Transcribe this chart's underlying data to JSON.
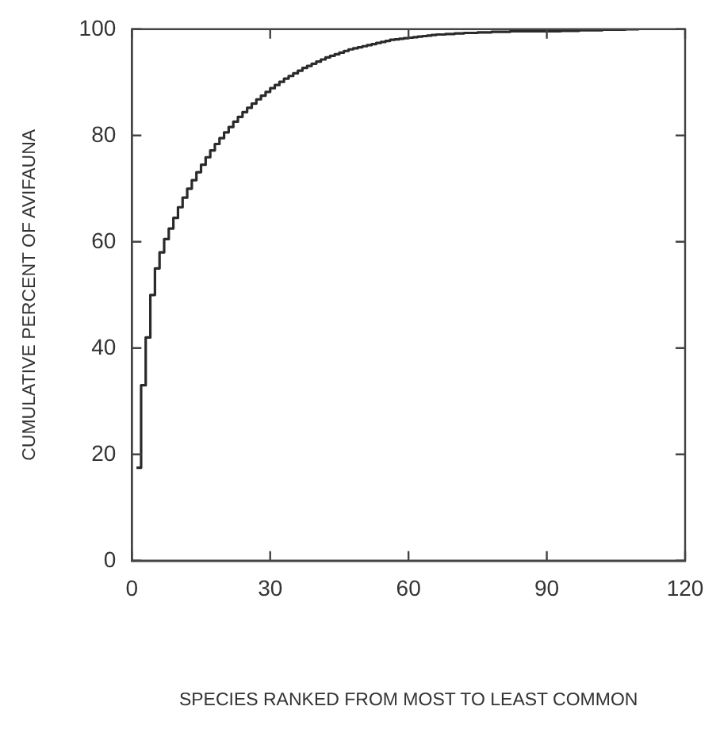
{
  "chart_data": {
    "type": "step",
    "xlabel": "SPECIES RANKED FROM MOST TO LEAST COMMON",
    "ylabel": "CUMULATIVE PERCENT OF AVIFAUNA",
    "x": [
      1,
      2,
      3,
      4,
      5,
      6,
      7,
      8,
      9,
      10,
      11,
      12,
      13,
      14,
      15,
      16,
      17,
      18,
      19,
      20,
      21,
      22,
      23,
      24,
      25,
      26,
      27,
      28,
      29,
      30,
      31,
      32,
      33,
      34,
      35,
      36,
      37,
      38,
      39,
      40,
      41,
      42,
      43,
      44,
      45,
      46,
      47,
      48,
      49,
      50,
      51,
      52,
      53,
      54,
      55,
      56,
      57,
      58,
      59,
      60,
      61,
      62,
      63,
      64,
      65,
      66,
      67,
      68,
      69,
      70,
      71,
      72,
      73,
      74,
      75,
      76,
      77,
      78,
      79,
      80,
      81,
      82,
      83,
      84,
      85,
      86,
      87,
      88,
      89,
      90,
      91,
      92,
      93,
      94,
      95,
      96,
      97,
      98,
      99,
      100,
      101,
      102,
      103,
      104,
      105,
      106,
      107,
      108,
      109,
      110
    ],
    "series": [
      {
        "color": "#2a2a2a",
        "values": [
          17.5,
          33,
          42,
          50,
          55,
          58,
          60.5,
          62.5,
          64.5,
          66.5,
          68.3,
          70,
          71.6,
          73.1,
          74.5,
          75.9,
          77.2,
          78.4,
          79.5,
          80.6,
          81.6,
          82.6,
          83.5,
          84.4,
          85.2,
          86,
          86.8,
          87.5,
          88.2,
          88.9,
          89.5,
          90.1,
          90.7,
          91.2,
          91.7,
          92.2,
          92.7,
          93.1,
          93.5,
          93.9,
          94.3,
          94.7,
          95,
          95.3,
          95.6,
          95.9,
          96.2,
          96.4,
          96.6,
          96.8,
          97,
          97.2,
          97.4,
          97.6,
          97.8,
          98,
          98.1,
          98.2,
          98.3,
          98.4,
          98.5,
          98.6,
          98.7,
          98.8,
          98.9,
          99,
          99,
          99.1,
          99.1,
          99.2,
          99.2,
          99.3,
          99.3,
          99.3,
          99.4,
          99.4,
          99.4,
          99.5,
          99.5,
          99.5,
          99.5,
          99.6,
          99.6,
          99.6,
          99.6,
          99.6,
          99.6,
          99.6,
          99.6,
          99.6,
          99.6,
          99.6,
          99.7,
          99.7,
          99.7,
          99.7,
          99.8,
          99.8,
          99.8,
          99.8,
          99.8,
          99.9,
          99.9,
          99.9,
          99.9,
          99.9,
          100,
          100,
          100,
          100
        ]
      }
    ],
    "xlim": [
      0,
      120
    ],
    "xticks": [
      0,
      30,
      60,
      90,
      120
    ],
    "ylim": [
      0,
      100
    ],
    "yticks": [
      0,
      20,
      40,
      60,
      80,
      100
    ],
    "grid": false,
    "legend": false,
    "marker": "none",
    "line_style": "solid"
  }
}
